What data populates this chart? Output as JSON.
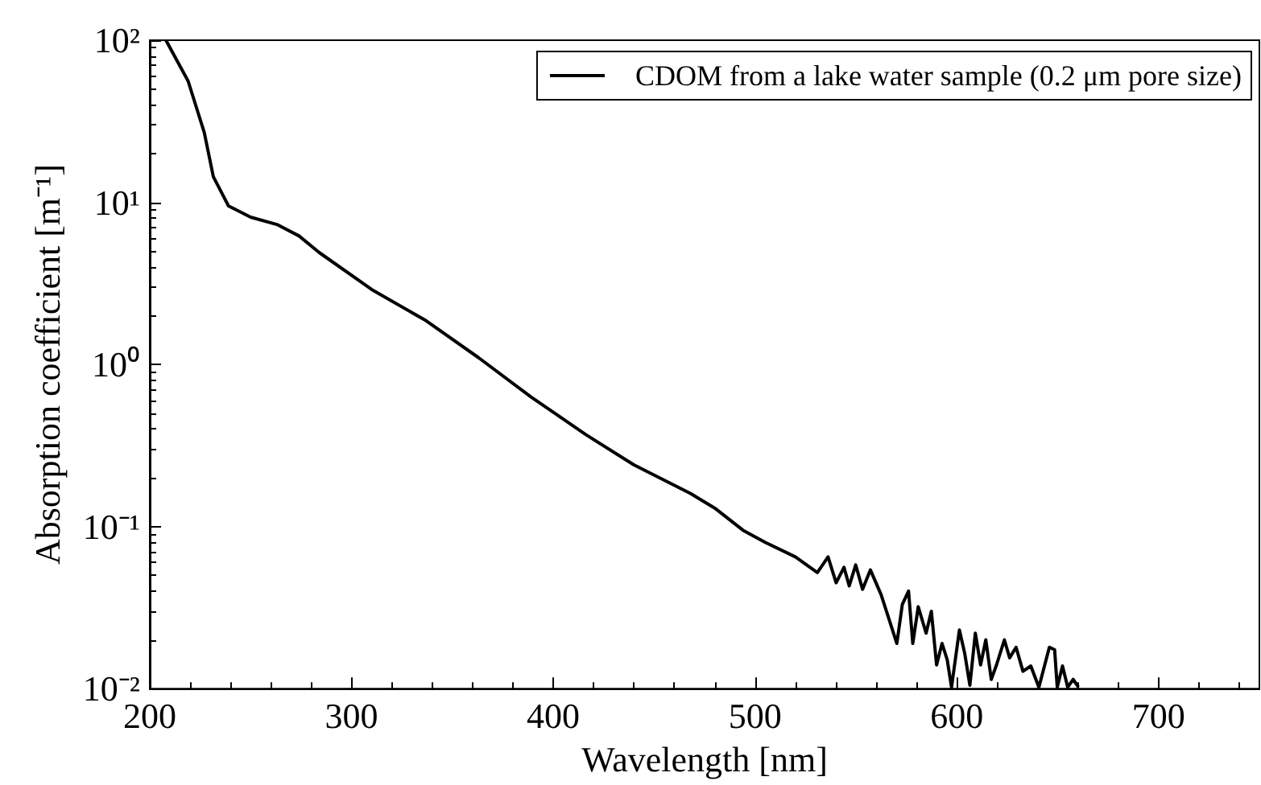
{
  "chart_data": {
    "type": "line",
    "xlabel": "Wavelength [nm]",
    "ylabel": "Absorption coefficient [m⁻¹]",
    "xlim": [
      200,
      750
    ],
    "xticks": [
      200,
      300,
      400,
      500,
      600,
      700
    ],
    "ylim": [
      0.01,
      100
    ],
    "yticks": [
      {
        "value": 0.01,
        "label": "10⁻²"
      },
      {
        "value": 0.1,
        "label": "10⁻¹"
      },
      {
        "value": 1,
        "label": "10⁰"
      },
      {
        "value": 10,
        "label": "10¹"
      },
      {
        "value": 100,
        "label": "10²"
      }
    ],
    "log": "y",
    "grid": false,
    "legend": "top right",
    "marker": "none",
    "line_style": "solid",
    "series": [
      {
        "name": "CDOM from a lake water sample (0.2 μm pore size)",
        "color": "#000000",
        "x": [
          208,
          219,
          227,
          231.5,
          239,
          250,
          263,
          274,
          284,
          310,
          337,
          363,
          389,
          416,
          440,
          468,
          480,
          494,
          505,
          520,
          530.9,
          536.2,
          540.2,
          544.1,
          546.7,
          549.9,
          553.3,
          557.2,
          562.5,
          570.3,
          573,
          576.1,
          578.2,
          580.9,
          584.8,
          587.4,
          590,
          592.7,
          595.3,
          597.4,
          601.3,
          603.9,
          606.5,
          609.2,
          611.8,
          614.4,
          617.1,
          619.7,
          623.6,
          626.2,
          629.4,
          632.8,
          636.7,
          640.7,
          645.9,
          648.5,
          649.8,
          652.4,
          655,
          657.7,
          660.3
        ],
        "values": [
          100,
          56,
          27,
          14.4,
          9.5,
          8.1,
          7.3,
          6.2,
          4.9,
          2.9,
          1.86,
          1.1,
          0.63,
          0.37,
          0.24,
          0.16,
          0.13,
          0.095,
          0.08,
          0.065,
          0.052,
          0.065,
          0.045,
          0.056,
          0.043,
          0.058,
          0.041,
          0.054,
          0.038,
          0.019,
          0.033,
          0.04,
          0.019,
          0.032,
          0.022,
          0.03,
          0.014,
          0.019,
          0.015,
          0.0102,
          0.023,
          0.0166,
          0.0105,
          0.022,
          0.014,
          0.02,
          0.0114,
          0.014,
          0.02,
          0.0155,
          0.018,
          0.0128,
          0.0138,
          0.0102,
          0.018,
          0.0174,
          0.0102,
          0.0138,
          0.0102,
          0.0114,
          0.0102
        ]
      }
    ]
  }
}
